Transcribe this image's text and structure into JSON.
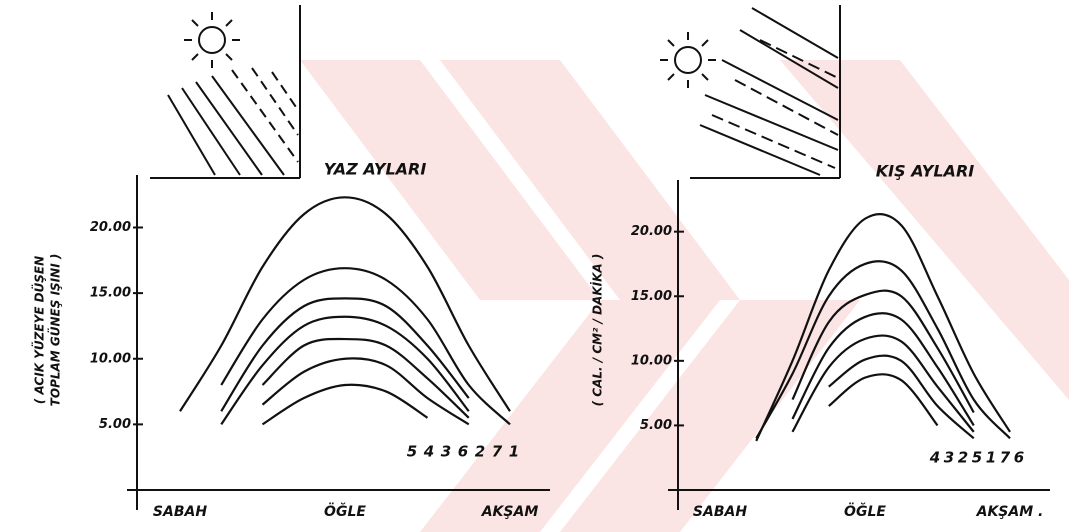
{
  "chart_data": [
    {
      "type": "line",
      "title": "YAZ AYLARI",
      "y_label": [
        "( ACIK YÜZEYE DÜŞEN",
        "TOPLAM GÜNEŞ IŞINI )"
      ],
      "categories": [
        "SABAH",
        null,
        null,
        null,
        "ÖĞLE",
        null,
        null,
        null,
        "AKŞAM"
      ],
      "ylim": [
        0,
        24
      ],
      "yticks": [
        {
          "value": 5,
          "label": "5.00"
        },
        {
          "value": 10,
          "label": "10.00"
        },
        {
          "value": 15,
          "label": "15.00"
        },
        {
          "value": 20,
          "label": "20.00"
        }
      ],
      "series": [
        {
          "name": "5",
          "color": "#111111",
          "values": [
            null,
            null,
            5,
            7,
            8,
            7.5,
            5.5,
            null,
            null
          ]
        },
        {
          "name": "4",
          "color": "#111111",
          "values": [
            null,
            null,
            6.5,
            9,
            10,
            9.5,
            7,
            5,
            null
          ]
        },
        {
          "name": "3",
          "color": "#111111",
          "values": [
            null,
            null,
            8,
            11,
            11.5,
            11,
            8.5,
            5.5,
            null
          ]
        },
        {
          "name": "6",
          "color": "#111111",
          "values": [
            null,
            5,
            9.5,
            12.5,
            13.2,
            12.5,
            10,
            6,
            null
          ]
        },
        {
          "name": "2",
          "color": "#111111",
          "values": [
            null,
            6,
            11,
            14,
            14.6,
            14,
            11,
            7,
            null
          ]
        },
        {
          "name": "7",
          "color": "#111111",
          "values": [
            null,
            8,
            13,
            16,
            16.9,
            16,
            13,
            8,
            5
          ]
        },
        {
          "name": "1",
          "color": "#111111",
          "values": [
            6,
            11,
            17,
            21,
            22.3,
            21,
            17,
            11,
            6
          ]
        }
      ]
    },
    {
      "type": "line",
      "title": "KIŞ AYLARI",
      "y_label": [
        "( CAL. / CM² / DAKİKA )"
      ],
      "categories": [
        "SABAH",
        null,
        null,
        null,
        "ÖĞLE",
        null,
        null,
        null,
        "AKŞAM ."
      ],
      "ylim": [
        0,
        24
      ],
      "yticks": [
        {
          "value": 5,
          "label": "5.00"
        },
        {
          "value": 10,
          "label": "10.00"
        },
        {
          "value": 15,
          "label": "15.00"
        },
        {
          "value": 20,
          "label": "20.00"
        }
      ],
      "series": [
        {
          "name": "4",
          "color": "#111111",
          "values": [
            null,
            null,
            null,
            6.5,
            8.7,
            8.5,
            5,
            null,
            null
          ]
        },
        {
          "name": "3",
          "color": "#111111",
          "values": [
            null,
            null,
            null,
            8,
            10.1,
            10,
            6.5,
            4,
            null
          ]
        },
        {
          "name": "2",
          "color": "#111111",
          "values": [
            null,
            null,
            4.5,
            9.5,
            11.7,
            11.5,
            8,
            4.5,
            null
          ]
        },
        {
          "name": "5",
          "color": "#111111",
          "values": [
            null,
            null,
            5.5,
            11,
            13.4,
            13.2,
            9.5,
            5,
            null
          ]
        },
        {
          "name": "1",
          "color": "#111111",
          "values": [
            null,
            null,
            7,
            13,
            15.1,
            15,
            11,
            6,
            null
          ]
        },
        {
          "name": "7",
          "color": "#111111",
          "values": [
            null,
            4,
            9,
            15,
            17.5,
            17,
            12.5,
            7,
            4
          ]
        },
        {
          "name": "6",
          "color": "#111111",
          "values": [
            null,
            3.8,
            10,
            17,
            21,
            20.5,
            15,
            9,
            4.5
          ]
        }
      ]
    }
  ]
}
